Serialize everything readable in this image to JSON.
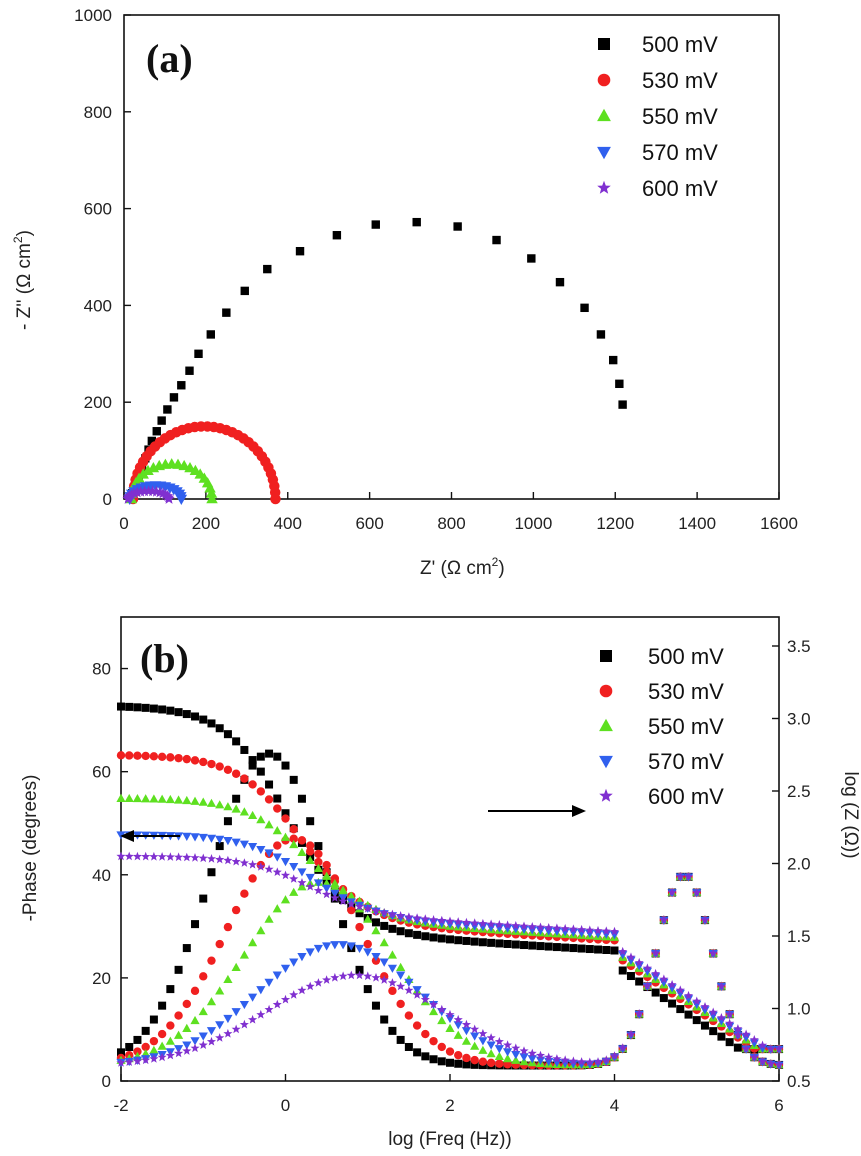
{
  "chart_data": [
    {
      "type": "scatter",
      "panel_label": "(a)",
      "xlabel": "Z' (Ω cm",
      "ylabel": "- Z'' (Ω cm",
      "unit_sup": "2",
      "unit_close": ")",
      "xlim": [
        0,
        1600
      ],
      "ylim": [
        0,
        1000
      ],
      "xticks": [
        "0",
        "200",
        "400",
        "600",
        "800",
        "1000",
        "1200",
        "1400",
        "1600"
      ],
      "yticks": [
        "0",
        "200",
        "400",
        "600",
        "800",
        "1000"
      ],
      "legend": [
        "500 mV",
        "530 mV",
        "550 mV",
        "570 mV",
        "600 mV"
      ],
      "series": [
        {
          "name": "500 mV",
          "color": "#000000",
          "marker": "square",
          "x": [
            20,
            28,
            36,
            44,
            52,
            60,
            68,
            80,
            92,
            106,
            122,
            140,
            160,
            182,
            212,
            250,
            295,
            350,
            430,
            520,
            615,
            715,
            815,
            910,
            995,
            1065,
            1125,
            1165,
            1195,
            1210,
            1218
          ],
          "y": [
            12,
            30,
            48,
            66,
            84,
            102,
            120,
            140,
            162,
            185,
            210,
            235,
            265,
            300,
            340,
            385,
            430,
            475,
            512,
            545,
            567,
            572,
            563,
            535,
            497,
            448,
            395,
            340,
            287,
            238,
            195
          ]
        },
        {
          "name": "530 mV",
          "color": "#f02020",
          "marker": "circle",
          "semicircle": {
            "start": 22,
            "end": 370,
            "height": 150
          }
        },
        {
          "name": "550 mV",
          "color": "#5ee020",
          "marker": "triangle-up",
          "semicircle": {
            "start": 18,
            "end": 215,
            "height": 72
          }
        },
        {
          "name": "570 mV",
          "color": "#3060ee",
          "marker": "triangle-down",
          "semicircle": {
            "start": 14,
            "end": 140,
            "height": 28
          }
        },
        {
          "name": "600 mV",
          "color": "#8030d0",
          "marker": "star",
          "semicircle": {
            "start": 10,
            "end": 110,
            "height": 16
          }
        }
      ]
    },
    {
      "type": "scatter",
      "panel_label": "(b)",
      "xlabel": "log (Freq (Hz))",
      "ylabel_left": "-Phase (degrees)",
      "ylabel_right": "log (Z (Ω))",
      "xlim": [
        -2,
        6
      ],
      "ylim_left": [
        0,
        90
      ],
      "ylim_right": [
        0.5,
        3.7
      ],
      "xticks": [
        "-2",
        "0",
        "2",
        "4",
        "6"
      ],
      "yticks_left": [
        "0",
        "20",
        "40",
        "60",
        "80"
      ],
      "yticks_right": [
        "0.5",
        "1.0",
        "1.5",
        "2.0",
        "2.5",
        "3.0",
        "3.5"
      ],
      "legend": [
        "500 mV",
        "530 mV",
        "550 mV",
        "570 mV",
        "600 mV"
      ],
      "annotations": [
        "arrow-left-phase-axis",
        "arrow-right-logZ-axis"
      ],
      "series": [
        {
          "name": "500 mV",
          "color": "#000000",
          "marker": "square",
          "logz_plateau": 3.09,
          "logz_fall_center": 0.05,
          "phase_peak": 60.5,
          "phase_peak_at": -0.2
        },
        {
          "name": "530 mV",
          "color": "#f02020",
          "marker": "circle",
          "logz_plateau": 2.75,
          "logz_fall_center": 0.2,
          "phase_peak": 44,
          "phase_peak_at": 0.1
        },
        {
          "name": "550 mV",
          "color": "#5ee020",
          "marker": "triangle-up",
          "logz_plateau": 2.45,
          "logz_fall_center": 0.3,
          "phase_peak": 35.5,
          "phase_peak_at": 0.4
        },
        {
          "name": "570 mV",
          "color": "#3060ee",
          "marker": "triangle-down",
          "logz_plateau": 2.2,
          "logz_fall_center": 0.3,
          "phase_peak": 23.5,
          "phase_peak_at": 0.65
        },
        {
          "name": "600 mV",
          "color": "#8030d0",
          "marker": "star",
          "logz_plateau": 2.05,
          "logz_fall_center": 0.3,
          "phase_peak": 17.5,
          "phase_peak_at": 0.85
        }
      ]
    }
  ]
}
